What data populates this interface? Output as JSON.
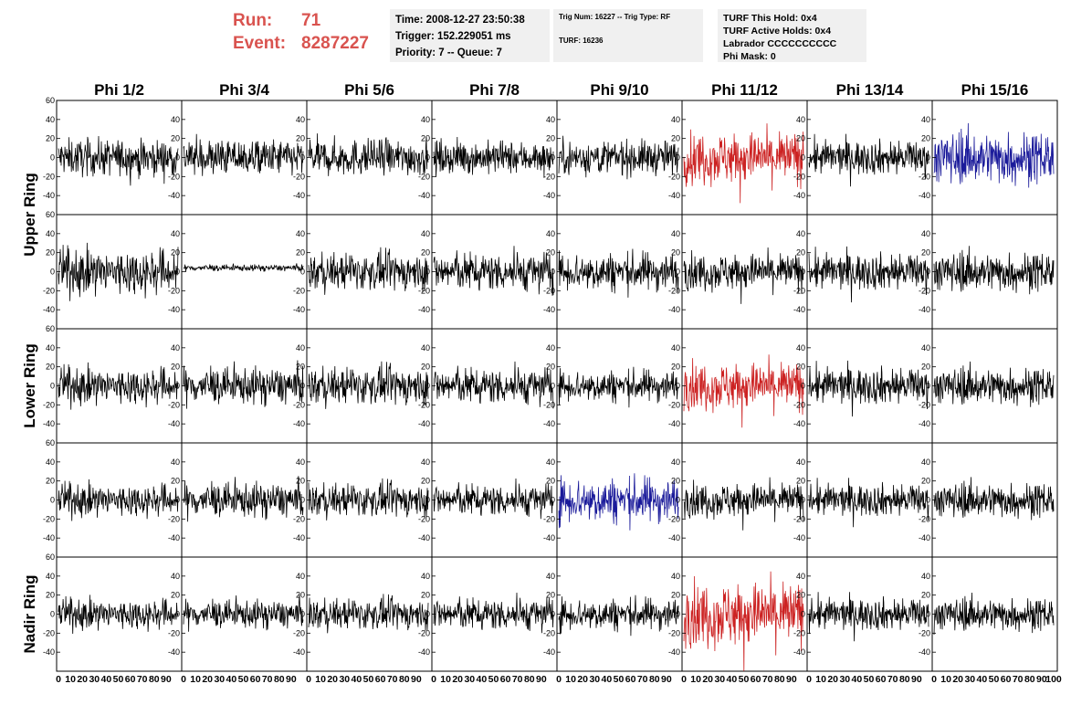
{
  "header": {
    "run_label": "Run:",
    "run_value": "71",
    "event_label": "Event:",
    "event_value": "8287227",
    "time": "Time: 2008-12-27 23:50:38",
    "trigger": "Trigger: 152.229051 ms",
    "priority": "Priority: 7 -- Queue: 7",
    "trig_num": "Trig Num: 16227 -- Trig Type: RF",
    "turf": "TURF: 16236",
    "turf_this_hold": "TURF This Hold: 0x4",
    "turf_active_holds": "TURF Active Holds: 0x4",
    "labrador": "Labrador CCCCCCCCCC",
    "phi_mask": "Phi Mask: 0"
  },
  "chart_data": {
    "type": "line",
    "columns": [
      "Phi 1/2",
      "Phi 3/4",
      "Phi 5/6",
      "Phi 7/8",
      "Phi 9/10",
      "Phi 11/12",
      "Phi 13/14",
      "Phi 15/16"
    ],
    "ring_labels": [
      "Upper Ring",
      "Lower Ring",
      "Nadir Ring"
    ],
    "rows": 5,
    "ylim": [
      -60,
      60
    ],
    "yticks": [
      -40,
      -20,
      0,
      20,
      40,
      60
    ],
    "xlim": [
      0,
      100
    ],
    "xticks_bottom": [
      "0",
      "10",
      "20",
      "30",
      "40",
      "50",
      "60",
      "70",
      "80",
      "90",
      "100"
    ],
    "xlabel": "",
    "ylabel": "",
    "colors": {
      "normal": "#000000",
      "red": "#cc2222",
      "blue": "#1a1a9a"
    },
    "highlights": [
      {
        "row": 1,
        "col": 6,
        "color": "red"
      },
      {
        "row": 1,
        "col": 8,
        "color": "blue"
      },
      {
        "row": 3,
        "col": 6,
        "color": "red"
      },
      {
        "row": 4,
        "col": 5,
        "color": "blue"
      },
      {
        "row": 5,
        "col": 6,
        "color": "red"
      }
    ],
    "panel_amplitude": [
      [
        17,
        17,
        17,
        15,
        16,
        24,
        16,
        24
      ],
      [
        21,
        3,
        17,
        18,
        18,
        17,
        17,
        18
      ],
      [
        17,
        17,
        17,
        17,
        15,
        22,
        17,
        17
      ],
      [
        15,
        16,
        15,
        15,
        21,
        16,
        15,
        16
      ],
      [
        14,
        13,
        14,
        15,
        15,
        30,
        15,
        15
      ]
    ],
    "panel_offset": [
      [
        0,
        0,
        0,
        0,
        0,
        0,
        0,
        0
      ],
      [
        0,
        4,
        0,
        0,
        0,
        0,
        0,
        0
      ],
      [
        0,
        0,
        0,
        0,
        0,
        0,
        0,
        0
      ],
      [
        0,
        0,
        0,
        0,
        0,
        0,
        0,
        0
      ],
      [
        0,
        0,
        0,
        0,
        0,
        0,
        0,
        0
      ]
    ],
    "samples_per_panel": 260,
    "note_series": "Each panel shows a noise-like waveform centered near 0 spanning x 0-100 with the approximate amplitude listed in panel_amplitude."
  }
}
